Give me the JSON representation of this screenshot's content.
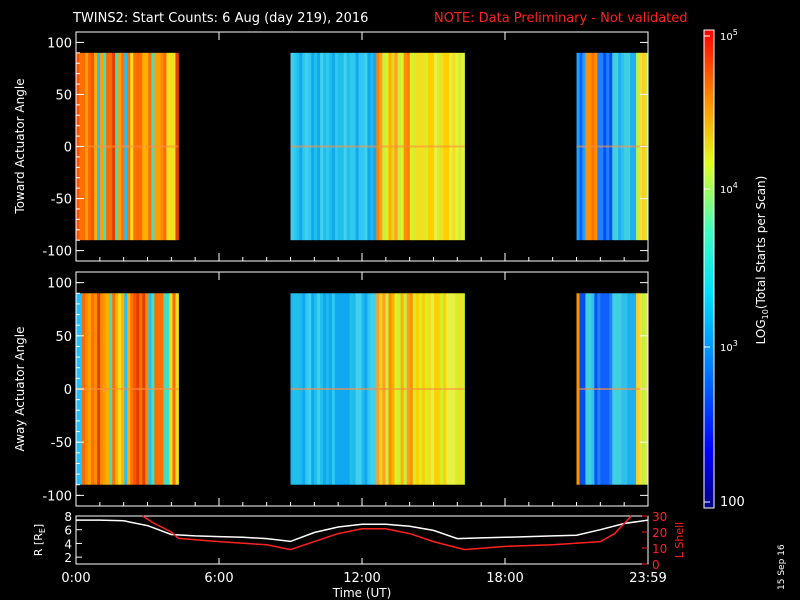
{
  "title": "TWINS2: Start Counts:  6 Aug (day 219), 2016",
  "note": "NOTE: Data Preliminary - Not validated",
  "date_stamp": "15 Sep 16",
  "colors": {
    "background": "#000000",
    "axis": "#ffffff",
    "note": "#ff2020",
    "l_shell": "#ff2020",
    "r_line": "#ffffff"
  },
  "chart_data": [
    {
      "type": "heatmap",
      "panel": "toward",
      "ylabel": "Toward Actuator Angle",
      "ylim": [
        -110,
        110
      ],
      "yticks": [
        "100",
        "50",
        "0",
        "-50",
        "-100"
      ],
      "angle_range": [
        -90,
        90
      ],
      "data_blocks": [
        {
          "start_hr": 0.0,
          "end_hr": 4.3,
          "level": "high-variable"
        },
        {
          "start_hr": 9.0,
          "end_hr": 12.6,
          "level": "medium"
        },
        {
          "start_hr": 12.6,
          "end_hr": 16.3,
          "level": "high"
        },
        {
          "start_hr": 21.0,
          "end_hr": 24.0,
          "level": "mixed"
        }
      ]
    },
    {
      "type": "heatmap",
      "panel": "away",
      "ylabel": "Away Actuator Angle",
      "ylim": [
        -110,
        110
      ],
      "yticks": [
        "100",
        "50",
        "0",
        "-50",
        "-100"
      ],
      "angle_range": [
        -90,
        90
      ],
      "data_blocks": [
        {
          "start_hr": 0.0,
          "end_hr": 4.3,
          "level": "high-variable"
        },
        {
          "start_hr": 9.0,
          "end_hr": 12.6,
          "level": "medium"
        },
        {
          "start_hr": 12.6,
          "end_hr": 16.3,
          "level": "high"
        },
        {
          "start_hr": 21.0,
          "end_hr": 24.0,
          "level": "mixed"
        }
      ]
    },
    {
      "type": "line",
      "panel": "ephemeris",
      "ylabel": "R [R",
      "ylabel_sub": "E",
      "ylabel_close": "]",
      "y2label": "L Shell",
      "ylim": [
        1,
        8
      ],
      "yticks": [
        "8",
        "6",
        "4",
        "2"
      ],
      "y2lim": [
        0,
        30
      ],
      "y2ticks": [
        "30",
        "20",
        "10",
        "0"
      ],
      "xlabel": "Time (UT)",
      "xticks": [
        "0:00",
        "6:00",
        "12:00",
        "18:00",
        "23:59"
      ],
      "xlim_hr": [
        0,
        24
      ],
      "series": [
        {
          "axis": "left",
          "x": [
            0,
            1,
            2,
            3,
            4,
            5,
            6,
            7,
            8,
            9,
            10,
            11,
            12,
            13,
            14,
            15,
            16,
            17,
            18,
            19,
            20,
            21,
            22,
            23,
            24
          ],
          "values": [
            7.4,
            7.4,
            7.3,
            6.6,
            5.3,
            5.1,
            5.0,
            4.9,
            4.7,
            4.3,
            5.6,
            6.4,
            6.8,
            6.8,
            6.5,
            5.9,
            4.7,
            4.8,
            4.9,
            5.0,
            5.1,
            5.2,
            6.0,
            6.9,
            7.4
          ]
        },
        {
          "axis": "right",
          "x": [
            2.8,
            3.2,
            4.0,
            4.3,
            6,
            8,
            9,
            10,
            11,
            12,
            13,
            14,
            15,
            16.3,
            18,
            20,
            22,
            22.6,
            23.3
          ],
          "values": [
            30,
            26,
            20,
            16,
            14,
            12,
            9,
            14,
            19,
            22,
            22,
            19,
            14,
            9,
            11,
            12,
            14,
            19,
            30
          ]
        }
      ]
    }
  ],
  "colorbar": {
    "label_prefix": "LOG",
    "label_sub": "10",
    "label_suffix": "(Total Starts per Scan)",
    "ticks": [
      "10",
      "10",
      "10",
      "100"
    ],
    "tick_exponents": [
      "5",
      "4",
      "3",
      ""
    ]
  }
}
